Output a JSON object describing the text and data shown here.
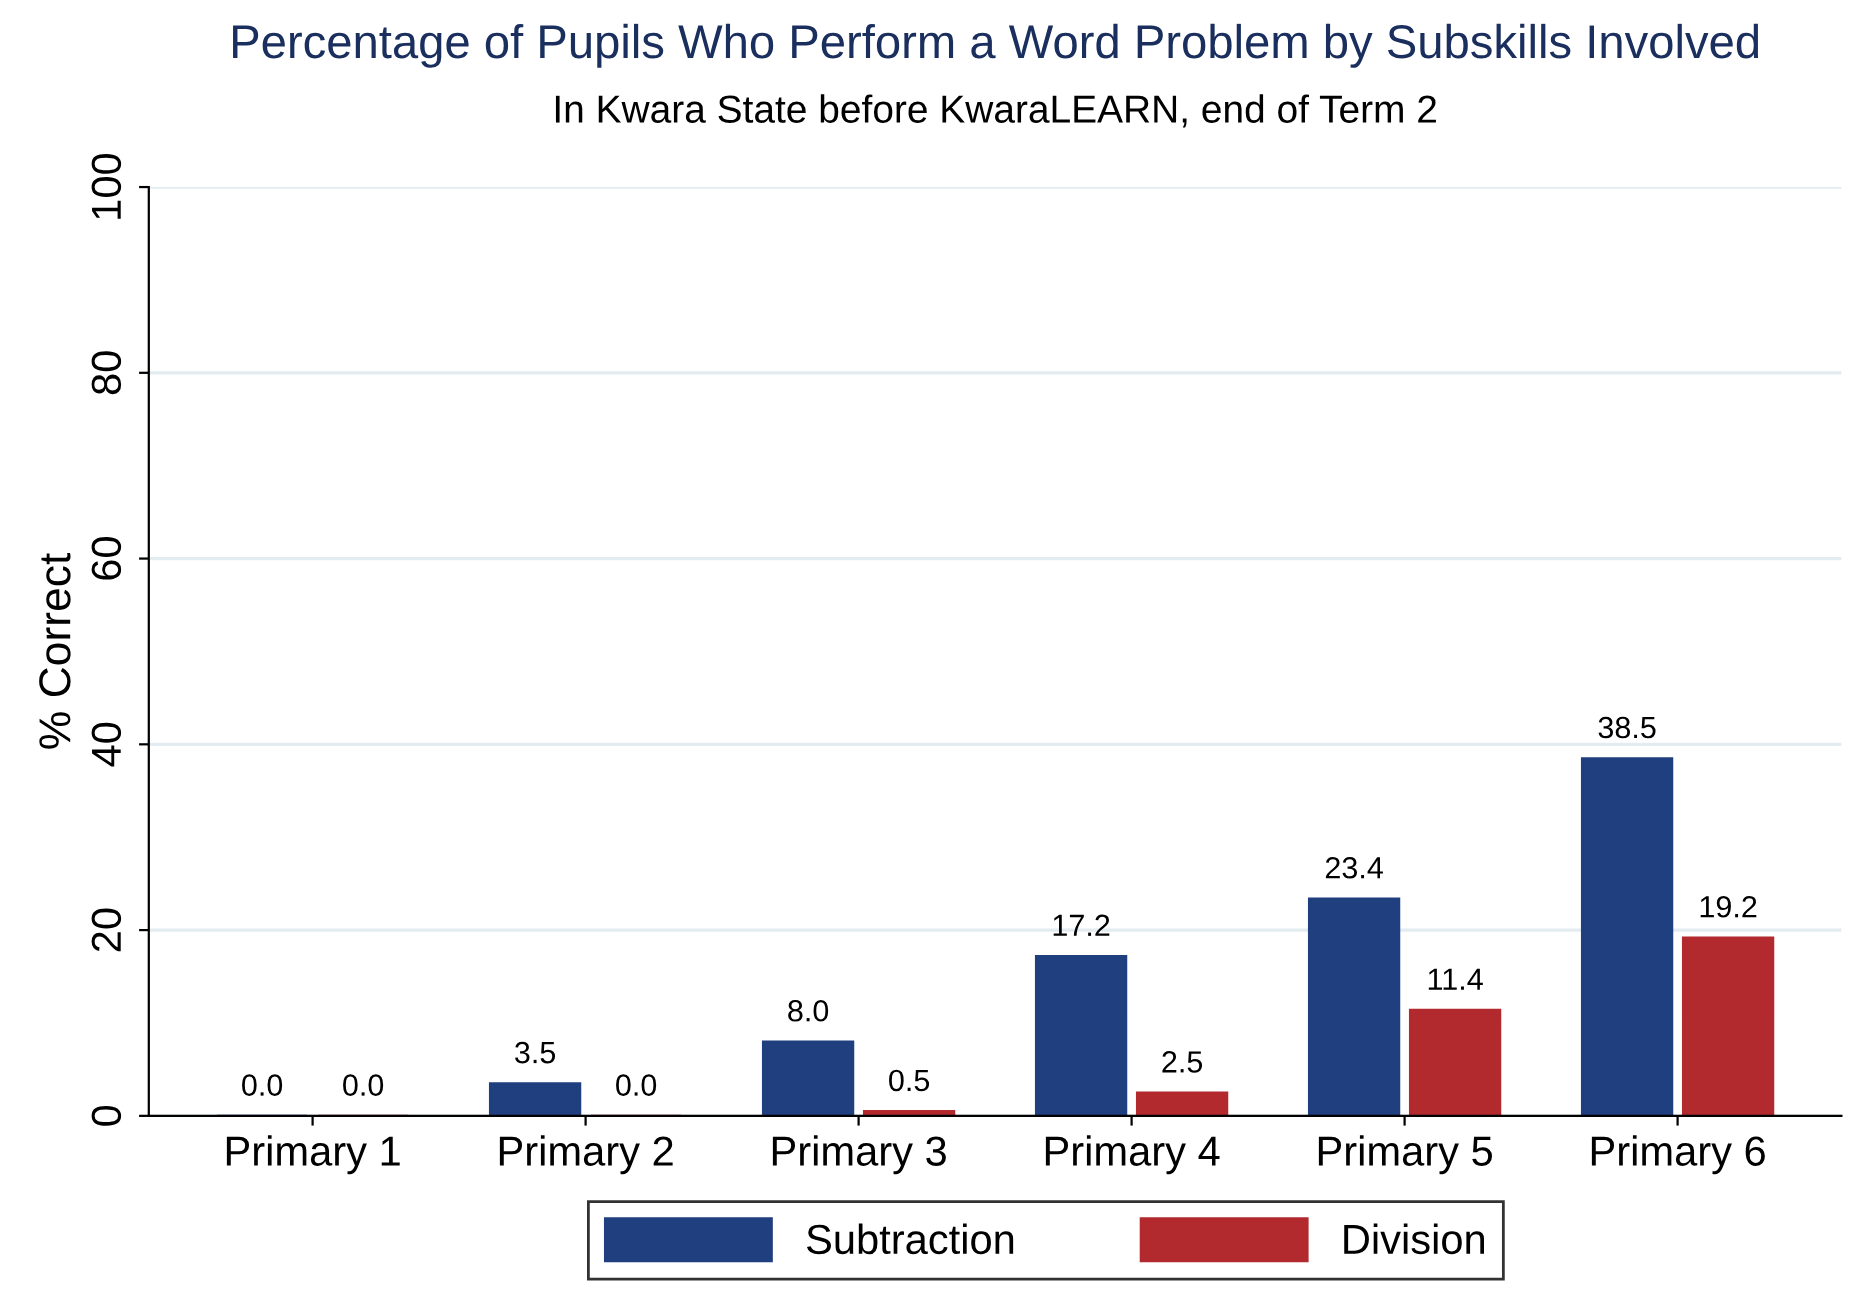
{
  "chart_data": {
    "type": "bar",
    "title": "Percentage of Pupils Who Perform a Word Problem by Subskills Involved",
    "subtitle": "In Kwara State before KwaraLEARN, end of Term 2",
    "ylabel": "% Correct",
    "categories": [
      "Primary 1",
      "Primary 2",
      "Primary 3",
      "Primary 4",
      "Primary 5",
      "Primary 6"
    ],
    "series": [
      {
        "name": "Subtraction",
        "color": "#1f3f7f",
        "values": [
          0.0,
          3.5,
          8.0,
          17.2,
          23.4,
          38.5
        ],
        "value_labels": [
          "0.0",
          "3.5",
          "8.0",
          "17.2",
          "23.4",
          "38.5"
        ]
      },
      {
        "name": "Division",
        "color": "#b2292e",
        "values": [
          0.0,
          0.0,
          0.5,
          2.5,
          11.4,
          19.2
        ],
        "value_labels": [
          "0.0",
          "0.0",
          "0.5",
          "2.5",
          "11.4",
          "19.2"
        ]
      }
    ],
    "ylim": [
      0,
      100
    ],
    "yticks": [
      0,
      20,
      40,
      60,
      80,
      100
    ],
    "grid": "y",
    "legend": "bottom"
  }
}
